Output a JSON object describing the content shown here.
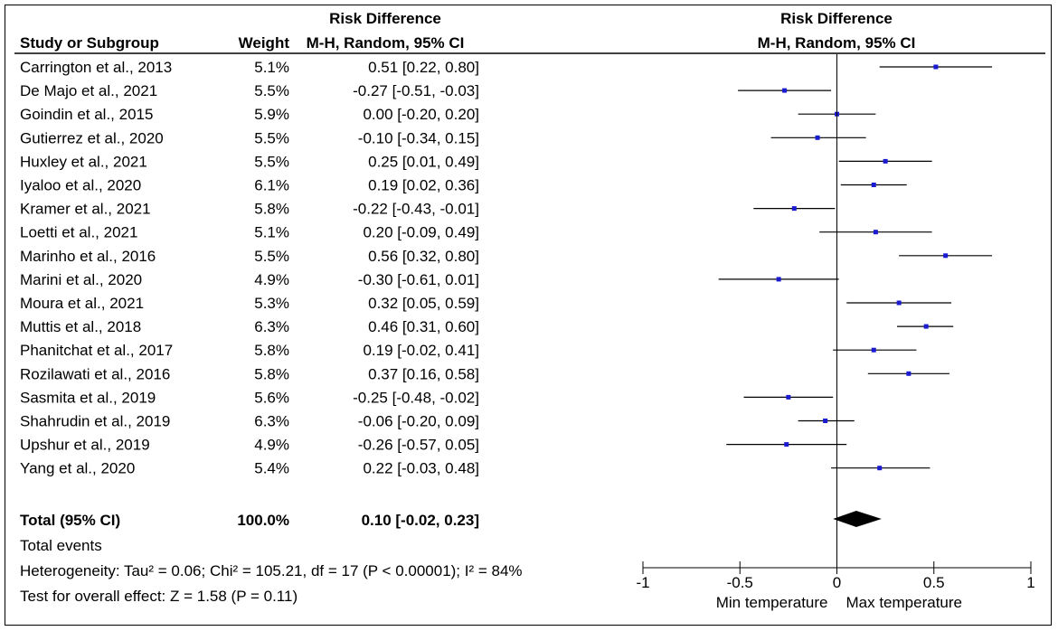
{
  "headers": {
    "col1": "Study or Subgroup",
    "col2": "Weight",
    "col3_top": "Risk Difference",
    "col3_bottom": "M-H, Random, 95% CI",
    "plot_top": "Risk Difference",
    "plot_bottom": "M-H, Random, 95% CI"
  },
  "total": {
    "label": "Total (95% CI)",
    "weight": "100.0%",
    "ci_text": "0.10 [-0.02, 0.23]"
  },
  "footer": {
    "events": "Total events",
    "heterogeneity": "Heterogeneity: Tau² = 0.06; Chi² = 105.21, df = 17 (P < 0.00001); I² = 84%",
    "overall": "Test for overall effect: Z = 1.58 (P = 0.11)"
  },
  "chart_data": {
    "type": "forest",
    "title": "Risk Difference M-H, Random, 95% CI",
    "xlim": [
      -1,
      1
    ],
    "ticks": [
      -1,
      -0.5,
      0,
      0.5,
      1
    ],
    "tick_labels": [
      "-1",
      "-0.5",
      "0",
      "0.5",
      "1"
    ],
    "xlabel_left": "Min temperature",
    "xlabel_right": "Max temperature",
    "studies": [
      {
        "name": "Carrington et al., 2013",
        "weight": "5.1%",
        "text": "0.51 [0.22, 0.80]",
        "est": 0.51,
        "lo": 0.22,
        "hi": 0.8
      },
      {
        "name": "De Majo et al., 2021",
        "weight": "5.5%",
        "text": "-0.27 [-0.51, -0.03]",
        "est": -0.27,
        "lo": -0.51,
        "hi": -0.03
      },
      {
        "name": "Goindin et al., 2015",
        "weight": "5.9%",
        "text": "0.00 [-0.20, 0.20]",
        "est": 0.0,
        "lo": -0.2,
        "hi": 0.2
      },
      {
        "name": "Gutierrez et al., 2020",
        "weight": "5.5%",
        "text": "-0.10 [-0.34, 0.15]",
        "est": -0.1,
        "lo": -0.34,
        "hi": 0.15
      },
      {
        "name": "Huxley et al., 2021",
        "weight": "5.5%",
        "text": "0.25 [0.01, 0.49]",
        "est": 0.25,
        "lo": 0.01,
        "hi": 0.49
      },
      {
        "name": "Iyaloo et al., 2020",
        "weight": "6.1%",
        "text": "0.19 [0.02, 0.36]",
        "est": 0.19,
        "lo": 0.02,
        "hi": 0.36
      },
      {
        "name": "Kramer et al., 2021",
        "weight": "5.8%",
        "text": "-0.22 [-0.43, -0.01]",
        "est": -0.22,
        "lo": -0.43,
        "hi": -0.01
      },
      {
        "name": "Loetti et al., 2021",
        "weight": "5.1%",
        "text": "0.20 [-0.09, 0.49]",
        "est": 0.2,
        "lo": -0.09,
        "hi": 0.49
      },
      {
        "name": "Marinho et al., 2016",
        "weight": "5.5%",
        "text": "0.56 [0.32, 0.80]",
        "est": 0.56,
        "lo": 0.32,
        "hi": 0.8
      },
      {
        "name": "Marini et al., 2020",
        "weight": "4.9%",
        "text": "-0.30 [-0.61, 0.01]",
        "est": -0.3,
        "lo": -0.61,
        "hi": 0.01
      },
      {
        "name": "Moura et al., 2021",
        "weight": "5.3%",
        "text": "0.32 [0.05, 0.59]",
        "est": 0.32,
        "lo": 0.05,
        "hi": 0.59
      },
      {
        "name": "Muttis et al., 2018",
        "weight": "6.3%",
        "text": "0.46 [0.31, 0.60]",
        "est": 0.46,
        "lo": 0.31,
        "hi": 0.6
      },
      {
        "name": "Phanitchat et al., 2017",
        "weight": "5.8%",
        "text": "0.19 [-0.02, 0.41]",
        "est": 0.19,
        "lo": -0.02,
        "hi": 0.41
      },
      {
        "name": "Rozilawati et al., 2016",
        "weight": "5.8%",
        "text": "0.37 [0.16, 0.58]",
        "est": 0.37,
        "lo": 0.16,
        "hi": 0.58
      },
      {
        "name": "Sasmita et al., 2019",
        "weight": "5.6%",
        "text": "-0.25 [-0.48, -0.02]",
        "est": -0.25,
        "lo": -0.48,
        "hi": -0.02
      },
      {
        "name": "Shahrudin et al., 2019",
        "weight": "6.3%",
        "text": "-0.06 [-0.20, 0.09]",
        "est": -0.06,
        "lo": -0.2,
        "hi": 0.09
      },
      {
        "name": "Upshur et al., 2019",
        "weight": "4.9%",
        "text": "-0.26 [-0.57, 0.05]",
        "est": -0.26,
        "lo": -0.57,
        "hi": 0.05
      },
      {
        "name": "Yang et al., 2020",
        "weight": "5.4%",
        "text": "0.22 [-0.03, 0.48]",
        "est": 0.22,
        "lo": -0.03,
        "hi": 0.48
      }
    ],
    "pooled": {
      "est": 0.1,
      "lo": -0.02,
      "hi": 0.23
    },
    "colors": {
      "marker": "#1a1ad0",
      "line": "#000000"
    }
  }
}
